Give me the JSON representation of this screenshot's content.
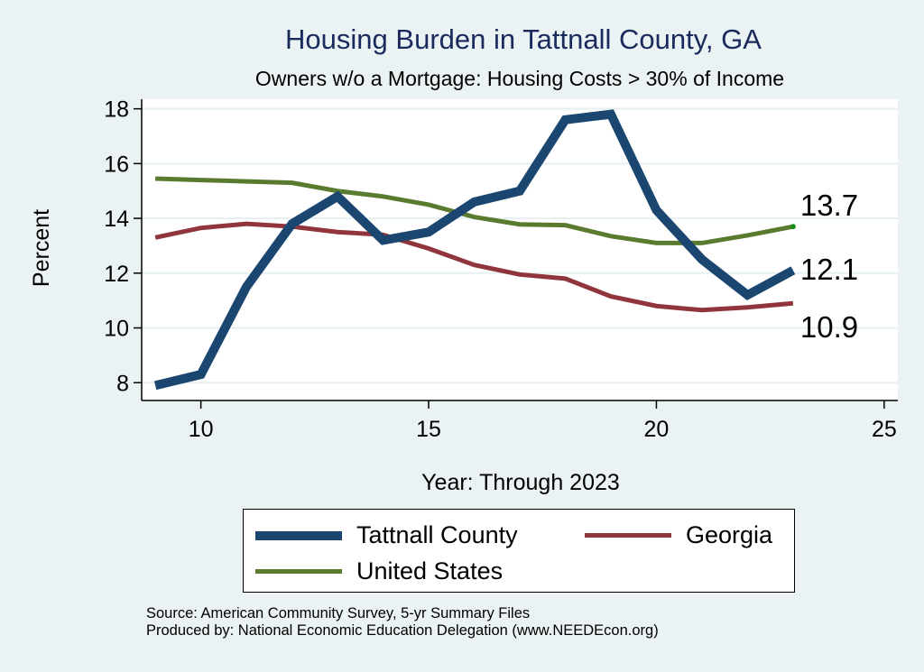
{
  "chart_data": {
    "type": "line",
    "title": "Housing Burden in Tattnall County, GA",
    "subtitle": "Owners w/o a Mortgage: Housing Costs > 30% of Income",
    "xlabel": "Year: Through 2023",
    "ylabel": "Percent",
    "xlim": [
      8.7,
      25.3
    ],
    "ylim": [
      7.35,
      18.35
    ],
    "xticks": [
      10,
      15,
      20,
      25
    ],
    "yticks": [
      8,
      10,
      12,
      14,
      16,
      18
    ],
    "grid": true,
    "legend_position": "bottom",
    "x": [
      9,
      10,
      11,
      12,
      13,
      14,
      15,
      16,
      17,
      18,
      19,
      20,
      21,
      22,
      23
    ],
    "series": [
      {
        "name": "Tattnall County",
        "color": "#1a4670",
        "values": [
          7.9,
          8.3,
          11.5,
          13.8,
          14.8,
          13.2,
          13.5,
          14.6,
          15.0,
          17.6,
          17.8,
          14.3,
          12.5,
          11.2,
          12.1
        ],
        "end_label": "12.1"
      },
      {
        "name": "Georgia",
        "color": "#90353b",
        "values": [
          13.3,
          13.65,
          13.8,
          13.7,
          13.5,
          13.4,
          12.9,
          12.3,
          11.95,
          11.8,
          11.15,
          10.8,
          10.65,
          10.75,
          10.9
        ],
        "end_label": "10.9"
      },
      {
        "name": "United States",
        "color": "#5a7b2f",
        "values": [
          15.45,
          15.4,
          15.35,
          15.3,
          15.0,
          14.8,
          14.5,
          14.05,
          13.78,
          13.75,
          13.35,
          13.1,
          13.1,
          13.38,
          13.7
        ],
        "end_label": "13.7"
      }
    ]
  },
  "source_lines": [
    "Source: American Community Survey, 5-yr Summary Files",
    "Produced by: National Economic Education Delegation (www.NEEDEcon.org)"
  ]
}
